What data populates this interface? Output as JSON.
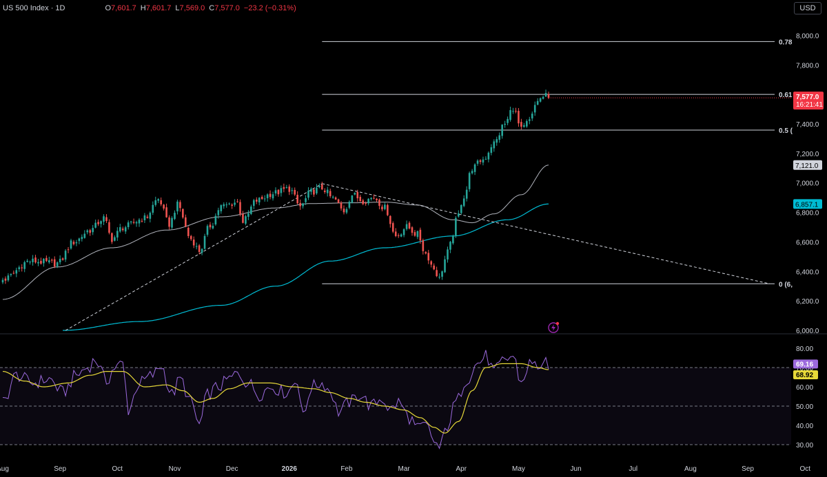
{
  "header": {
    "title": "US 500 Index · 1D",
    "open_label": "O",
    "open": "7,601.7",
    "high_label": "H",
    "high": "7,601.7",
    "low_label": "L",
    "low": "7,569.0",
    "close_label": "C",
    "close": "7,577.0",
    "change": "−23.2 (−0.31%)"
  },
  "currency": "USD",
  "colors": {
    "up": "#26a69a",
    "down": "#ef5350",
    "ma_long": "#00bcd4",
    "ma_short": "#b2b5be",
    "rsi": "#9c6ade",
    "rsi_ma": "#e6d839",
    "price_badge": "#f23645"
  },
  "chart_data": [
    {
      "type": "candlestick",
      "yticks": [
        8000,
        7800,
        7600,
        7400,
        7200,
        7000,
        6800,
        6600,
        6400,
        6200,
        6000
      ],
      "ytick_labels": [
        "8,000.0",
        "7,800.0",
        "7,600.0",
        "7,400.0",
        "7,200.0",
        "7,000.0",
        "6,800.0",
        "6,600.0",
        "6,400.0",
        "6,200.0",
        "6,000.0"
      ],
      "ylim": [
        6000,
        8100
      ],
      "x_labels": [
        "Aug",
        "Sep",
        "Oct",
        "Nov",
        "Dec",
        "2026",
        "Feb",
        "Mar",
        "Apr",
        "May",
        "Jun",
        "Jul",
        "Aug",
        "Sep",
        "Oct"
      ],
      "x_label_pos": [
        0,
        21,
        42,
        63,
        84,
        105,
        126,
        147,
        168,
        189,
        210,
        231,
        252,
        273,
        294
      ],
      "last_price": {
        "value": 7577.0,
        "label": "7,577.0",
        "countdown": "16:21:41"
      },
      "ma_labels": [
        {
          "value": 7121.0,
          "label": "7,121.0"
        },
        {
          "value": 6857.1,
          "label": "6,857.1"
        }
      ],
      "fib_levels": [
        {
          "label": "0.78",
          "value": 7958
        },
        {
          "label": "0.61",
          "value": 7600
        },
        {
          "label": "0.5 (",
          "value": 7358
        },
        {
          "label": "0 (6,",
          "value": 6316
        }
      ],
      "anchors": [
        {
          "x": 0,
          "price": 6345
        },
        {
          "x": 10,
          "price": 6470
        },
        {
          "x": 20,
          "price": 6455
        },
        {
          "x": 26,
          "price": 6600
        },
        {
          "x": 32,
          "price": 6680
        },
        {
          "x": 37,
          "price": 6760
        },
        {
          "x": 40,
          "price": 6620
        },
        {
          "x": 44,
          "price": 6700
        },
        {
          "x": 52,
          "price": 6760
        },
        {
          "x": 57,
          "price": 6890
        },
        {
          "x": 61,
          "price": 6720
        },
        {
          "x": 64,
          "price": 6850
        },
        {
          "x": 69,
          "price": 6620
        },
        {
          "x": 72,
          "price": 6540
        },
        {
          "x": 76,
          "price": 6710
        },
        {
          "x": 80,
          "price": 6840
        },
        {
          "x": 86,
          "price": 6870
        },
        {
          "x": 88,
          "price": 6740
        },
        {
          "x": 93,
          "price": 6880
        },
        {
          "x": 99,
          "price": 6930
        },
        {
          "x": 105,
          "price": 6960
        },
        {
          "x": 109,
          "price": 6840
        },
        {
          "x": 113,
          "price": 6940
        },
        {
          "x": 117,
          "price": 6965
        },
        {
          "x": 121,
          "price": 6895
        },
        {
          "x": 125,
          "price": 6810
        },
        {
          "x": 128,
          "price": 6920
        },
        {
          "x": 132,
          "price": 6880
        },
        {
          "x": 136,
          "price": 6900
        },
        {
          "x": 140,
          "price": 6830
        },
        {
          "x": 144,
          "price": 6640
        },
        {
          "x": 148,
          "price": 6700
        },
        {
          "x": 152,
          "price": 6650
        },
        {
          "x": 155,
          "price": 6520
        },
        {
          "x": 158,
          "price": 6420
        },
        {
          "x": 160,
          "price": 6350
        },
        {
          "x": 162,
          "price": 6480
        },
        {
          "x": 164,
          "price": 6580
        },
        {
          "x": 166,
          "price": 6740
        },
        {
          "x": 169,
          "price": 6910
        },
        {
          "x": 172,
          "price": 7100
        },
        {
          "x": 176,
          "price": 7160
        },
        {
          "x": 180,
          "price": 7270
        },
        {
          "x": 184,
          "price": 7400
        },
        {
          "x": 187,
          "price": 7510
        },
        {
          "x": 190,
          "price": 7360
        },
        {
          "x": 193,
          "price": 7420
        },
        {
          "x": 196,
          "price": 7560
        },
        {
          "x": 199,
          "price": 7590
        },
        {
          "x": 200,
          "price": 7577
        }
      ],
      "sma_short_anchors": [
        {
          "x": 0,
          "price": 6210
        },
        {
          "x": 20,
          "price": 6430
        },
        {
          "x": 40,
          "price": 6560
        },
        {
          "x": 60,
          "price": 6680
        },
        {
          "x": 80,
          "price": 6770
        },
        {
          "x": 100,
          "price": 6830
        },
        {
          "x": 113,
          "price": 6860
        },
        {
          "x": 128,
          "price": 6865
        },
        {
          "x": 140,
          "price": 6870
        },
        {
          "x": 152,
          "price": 6850
        },
        {
          "x": 165,
          "price": 6750
        },
        {
          "x": 172,
          "price": 6730
        },
        {
          "x": 180,
          "price": 6790
        },
        {
          "x": 190,
          "price": 6920
        },
        {
          "x": 200,
          "price": 7121
        }
      ],
      "sma_long_anchors": [
        {
          "x": 22,
          "price": 6000
        },
        {
          "x": 50,
          "price": 6060
        },
        {
          "x": 80,
          "price": 6170
        },
        {
          "x": 100,
          "price": 6300
        },
        {
          "x": 120,
          "price": 6470
        },
        {
          "x": 140,
          "price": 6560
        },
        {
          "x": 165,
          "price": 6640
        },
        {
          "x": 185,
          "price": 6750
        },
        {
          "x": 200,
          "price": 6857
        }
      ],
      "trendlines": [
        {
          "from": {
            "x": 23,
            "price": 6000
          },
          "to": {
            "x": 117,
            "price": 6995
          }
        },
        {
          "from": {
            "x": 117,
            "price": 6995
          },
          "to": {
            "x": 281,
            "price": 6316
          }
        }
      ],
      "fib_x_start": 117
    },
    {
      "type": "line",
      "name": "RSI",
      "yticks": [
        80,
        70,
        60,
        50,
        40,
        30
      ],
      "ytick_labels": [
        "80.00",
        "70.00",
        "60.00",
        "50.00",
        "40.00",
        "30.00"
      ],
      "ylim": [
        25,
        85
      ],
      "overbought": 70,
      "mid": 50,
      "oversold": 30,
      "rsi_value": "69.16",
      "rsi_ma_value": "68.92",
      "rsi_anchors": [
        {
          "x": 0,
          "rsi": 52
        },
        {
          "x": 5,
          "rsi": 66
        },
        {
          "x": 11,
          "rsi": 62
        },
        {
          "x": 17,
          "rsi": 64
        },
        {
          "x": 22,
          "rsi": 57
        },
        {
          "x": 27,
          "rsi": 66
        },
        {
          "x": 31,
          "rsi": 70
        },
        {
          "x": 34,
          "rsi": 74
        },
        {
          "x": 38,
          "rsi": 63
        },
        {
          "x": 41,
          "rsi": 70
        },
        {
          "x": 44,
          "rsi": 72
        },
        {
          "x": 46,
          "rsi": 48
        },
        {
          "x": 50,
          "rsi": 62
        },
        {
          "x": 55,
          "rsi": 66
        },
        {
          "x": 58,
          "rsi": 71
        },
        {
          "x": 62,
          "rsi": 56
        },
        {
          "x": 65,
          "rsi": 64
        },
        {
          "x": 69,
          "rsi": 52
        },
        {
          "x": 72,
          "rsi": 40
        },
        {
          "x": 75,
          "rsi": 56
        },
        {
          "x": 79,
          "rsi": 60
        },
        {
          "x": 83,
          "rsi": 64
        },
        {
          "x": 86,
          "rsi": 67
        },
        {
          "x": 90,
          "rsi": 62
        },
        {
          "x": 94,
          "rsi": 56
        },
        {
          "x": 98,
          "rsi": 60
        },
        {
          "x": 104,
          "rsi": 57
        },
        {
          "x": 108,
          "rsi": 64
        },
        {
          "x": 110,
          "rsi": 44
        },
        {
          "x": 113,
          "rsi": 60
        },
        {
          "x": 117,
          "rsi": 62
        },
        {
          "x": 120,
          "rsi": 58
        },
        {
          "x": 123,
          "rsi": 47
        },
        {
          "x": 127,
          "rsi": 52
        },
        {
          "x": 131,
          "rsi": 56
        },
        {
          "x": 135,
          "rsi": 50
        },
        {
          "x": 139,
          "rsi": 54
        },
        {
          "x": 142,
          "rsi": 48
        },
        {
          "x": 145,
          "rsi": 52
        },
        {
          "x": 149,
          "rsi": 44
        },
        {
          "x": 152,
          "rsi": 38
        },
        {
          "x": 155,
          "rsi": 40
        },
        {
          "x": 158,
          "rsi": 32
        },
        {
          "x": 160,
          "rsi": 28
        },
        {
          "x": 163,
          "rsi": 40
        },
        {
          "x": 166,
          "rsi": 52
        },
        {
          "x": 170,
          "rsi": 64
        },
        {
          "x": 174,
          "rsi": 72
        },
        {
          "x": 177,
          "rsi": 76
        },
        {
          "x": 180,
          "rsi": 68
        },
        {
          "x": 184,
          "rsi": 74
        },
        {
          "x": 187,
          "rsi": 76
        },
        {
          "x": 190,
          "rsi": 62
        },
        {
          "x": 193,
          "rsi": 72
        },
        {
          "x": 196,
          "rsi": 71
        },
        {
          "x": 199,
          "rsi": 72
        },
        {
          "x": 200,
          "rsi": 69.16
        }
      ],
      "rsi_ma_anchors": [
        {
          "x": 0,
          "rsi": 68
        },
        {
          "x": 8,
          "rsi": 63
        },
        {
          "x": 15,
          "rsi": 60
        },
        {
          "x": 24,
          "rsi": 62
        },
        {
          "x": 32,
          "rsi": 66
        },
        {
          "x": 38,
          "rsi": 68
        },
        {
          "x": 44,
          "rsi": 68
        },
        {
          "x": 52,
          "rsi": 60
        },
        {
          "x": 60,
          "rsi": 61
        },
        {
          "x": 66,
          "rsi": 58
        },
        {
          "x": 72,
          "rsi": 52
        },
        {
          "x": 77,
          "rsi": 54
        },
        {
          "x": 83,
          "rsi": 59
        },
        {
          "x": 90,
          "rsi": 62
        },
        {
          "x": 98,
          "rsi": 62
        },
        {
          "x": 106,
          "rsi": 60
        },
        {
          "x": 114,
          "rsi": 59
        },
        {
          "x": 120,
          "rsi": 57
        },
        {
          "x": 127,
          "rsi": 54
        },
        {
          "x": 133,
          "rsi": 52
        },
        {
          "x": 140,
          "rsi": 50
        },
        {
          "x": 147,
          "rsi": 48
        },
        {
          "x": 153,
          "rsi": 44
        },
        {
          "x": 158,
          "rsi": 39
        },
        {
          "x": 162,
          "rsi": 36
        },
        {
          "x": 167,
          "rsi": 42
        },
        {
          "x": 172,
          "rsi": 58
        },
        {
          "x": 177,
          "rsi": 70
        },
        {
          "x": 183,
          "rsi": 72
        },
        {
          "x": 190,
          "rsi": 72
        },
        {
          "x": 196,
          "rsi": 70
        },
        {
          "x": 200,
          "rsi": 68.92
        }
      ]
    }
  ]
}
